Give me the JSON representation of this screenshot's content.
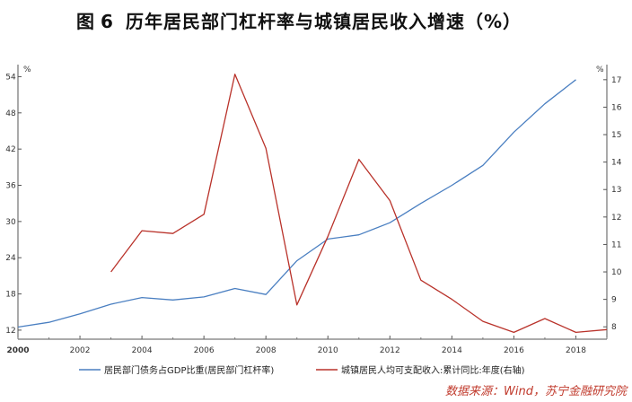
{
  "title_fig": "图 6",
  "title_main": "历年居民部门杠杆率与城镇居民收入增速（%）",
  "source": "数据来源：Wind，苏宁金融研究院",
  "chart_data": {
    "type": "line",
    "left_unit": "%",
    "right_unit": "%",
    "x_ticks": [
      "2000",
      "2002",
      "2004",
      "2006",
      "2008",
      "2010",
      "2012",
      "2014",
      "2016",
      "2018"
    ],
    "y_left_ticks": [
      "12",
      "18",
      "24",
      "30",
      "36",
      "42",
      "48",
      "54"
    ],
    "y_right_ticks": [
      "8",
      "9",
      "10",
      "11",
      "12",
      "13",
      "14",
      "15",
      "16",
      "17"
    ],
    "x_range": [
      2000,
      2019
    ],
    "y_left_range": [
      10.5,
      56
    ],
    "y_right_range": [
      7.55,
      17.55
    ],
    "grid": false,
    "legend_position": "bottom",
    "series": [
      {
        "name": "居民部门债务占GDP比重(居民部门杠杆率)",
        "axis": "left",
        "color": "#4a7fc1",
        "x": [
          2000,
          2001,
          2002,
          2003,
          2004,
          2005,
          2006,
          2007,
          2008,
          2009,
          2010,
          2011,
          2012,
          2013,
          2014,
          2015,
          2016,
          2017,
          2018
        ],
        "values": [
          12.5,
          13.3,
          14.7,
          16.3,
          17.4,
          17.0,
          17.5,
          18.9,
          17.9,
          23.5,
          27.1,
          27.8,
          29.8,
          33.0,
          36.0,
          39.3,
          44.8,
          49.5,
          53.5
        ]
      },
      {
        "name": "城镇居民人均可支配收入:累计同比:年度(右轴)",
        "axis": "right",
        "color": "#b9322a",
        "x": [
          2003,
          2004,
          2005,
          2006,
          2007,
          2008,
          2009,
          2010,
          2011,
          2012,
          2013,
          2014,
          2015,
          2016,
          2017,
          2018,
          2019
        ],
        "values": [
          10.0,
          11.5,
          11.4,
          12.1,
          17.2,
          14.5,
          8.8,
          11.3,
          14.1,
          12.6,
          9.7,
          9.0,
          8.2,
          7.8,
          8.3,
          7.8,
          7.9
        ]
      }
    ]
  }
}
